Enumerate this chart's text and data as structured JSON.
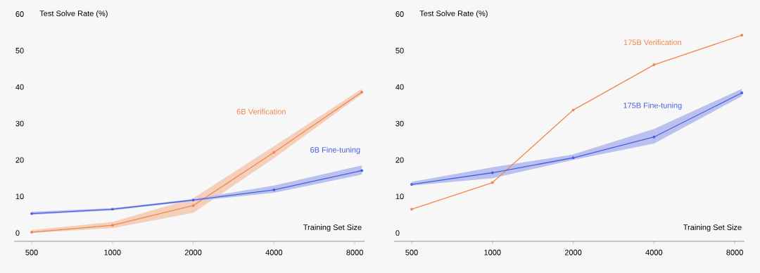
{
  "chart_data": [
    {
      "type": "line",
      "ylabel": "Test Solve Rate (%)",
      "xlabel": "Training Set Size",
      "log": "x",
      "marker": "circle",
      "line_style": "solid",
      "x": [
        500,
        1000,
        2000,
        4000,
        8500
      ],
      "xlim": [
        430,
        8700
      ],
      "xticks": [
        500,
        1000,
        2000,
        4000,
        8000
      ],
      "ylim": [
        -2.3,
        60
      ],
      "yticks": [
        0,
        10,
        20,
        30,
        40,
        50,
        60
      ],
      "series": [
        {
          "name": "6B Verification",
          "color": "#f0874e",
          "values": [
            0.2,
            2.1,
            7.5,
            22.1,
            38.6
          ],
          "lower": [
            0,
            1.3,
            5.5,
            20.5,
            38
          ],
          "upper": [
            0.8,
            3,
            9.5,
            23.8,
            39.5
          ]
        },
        {
          "name": "6B Fine-tuning",
          "color": "#4a5fe0",
          "values": [
            5.3,
            6.5,
            9,
            11.8,
            17.1
          ],
          "lower": [
            5,
            6.2,
            8.7,
            11,
            16
          ],
          "upper": [
            5.8,
            6.8,
            9.3,
            13,
            18.5
          ]
        }
      ]
    },
    {
      "type": "line",
      "ylabel": "Test Solve Rate (%)",
      "xlabel": "Training Set Size",
      "log": "x",
      "marker": "circle",
      "line_style": "solid",
      "x": [
        500,
        1000,
        2000,
        4000,
        8500
      ],
      "xlim": [
        430,
        8700
      ],
      "xticks": [
        500,
        1000,
        2000,
        4000,
        8000
      ],
      "ylim": [
        -2.3,
        60
      ],
      "yticks": [
        0,
        10,
        20,
        30,
        40,
        50,
        60
      ],
      "series": [
        {
          "name": "175B Verification",
          "color": "#f0874e",
          "values": [
            6.5,
            13.8,
            33.7,
            46.1,
            54.2
          ]
        },
        {
          "name": "175B Fine-tuning",
          "color": "#4a5fe0",
          "values": [
            13.3,
            16.5,
            20.6,
            26.3,
            38.4
          ],
          "lower": [
            13,
            15,
            20,
            24.5,
            37.5
          ],
          "upper": [
            14,
            18,
            21.5,
            28.5,
            39.5
          ]
        }
      ]
    }
  ]
}
